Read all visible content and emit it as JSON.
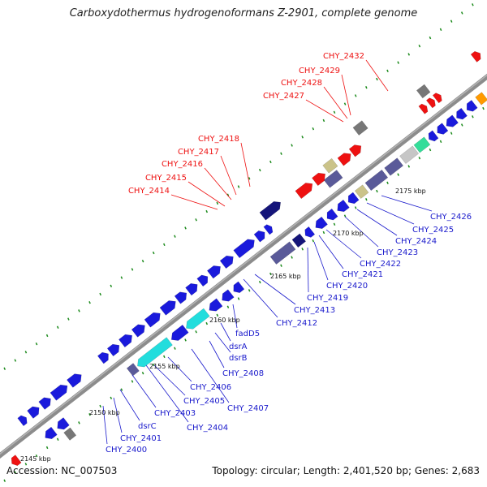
{
  "title": "Carboxydothermus hydrogenoformans Z-2901, complete genome",
  "accession": "Accession: NC_007503",
  "summary": "Topology: circular; Length: 2,401,520 bp; Genes: 2,683",
  "colors": {
    "cds_blue": "#1a1adc",
    "cds_cyan": "#22dddd",
    "cds_red": "#ee1111",
    "cds_gray": "#777777",
    "cds_slate": "#5a5a99",
    "cds_navy": "#15157a",
    "cds_khaki": "#cbc389",
    "cds_green": "#33dd99",
    "cds_orange": "#ff9a00",
    "cds_silver": "#c6c6c6",
    "label_red": "#ee1111",
    "label_blue": "#1a1acc",
    "backbone": "#8c8c8c",
    "tick_green": "#1b8a1b"
  },
  "ticks": [
    "2145 kbp",
    "2150 kbp",
    "2155 kbp",
    "2160 kbp",
    "2165 kbp",
    "2170 kbp",
    "2175 kbp"
  ],
  "labels_top": [
    "CHY_2414",
    "CHY_2415",
    "CHY_2416",
    "CHY_2417",
    "CHY_2418",
    "CHY_2427",
    "CHY_2428",
    "CHY_2429",
    "CHY_2432"
  ],
  "labels_bottom": [
    "CHY_2400",
    "CHY_2401",
    "dsrC",
    "CHY_2404",
    "CHY_2403",
    "CHY_2405",
    "CHY_2406",
    "CHY_2407",
    "CHY_2408",
    "dsrB",
    "dsrA",
    "fadD5",
    "CHY_2412",
    "CHY_2413",
    "CHY_2419",
    "CHY_2420",
    "CHY_2421",
    "CHY_2422",
    "CHY_2423",
    "CHY_2424",
    "CHY_2425",
    "CHY_2426"
  ]
}
